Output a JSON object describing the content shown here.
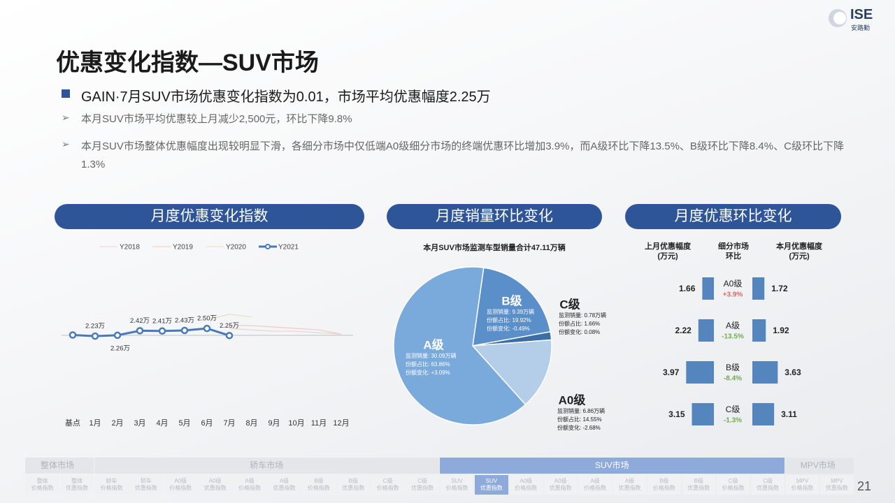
{
  "header": {
    "title": "优惠变化指数—SUV市场",
    "logo": "ISE",
    "logo_sub": "安路勤"
  },
  "summary": {
    "headline": "GAIN·7月SUV市场优惠变化指数为0.01，市场平均优惠幅度2.25万",
    "points": [
      "本月SUV市场平均优惠较上月减少2,500元，环比下降9.8%",
      "本月SUV市场整体优惠幅度出现较明显下滑，各细分市场中仅低端A0级细分市场的终端优惠环比增加3.9%，而A级环比下降13.5%、B级环比下降8.4%、C级环比下降1.3%"
    ]
  },
  "chart_data": [
    {
      "type": "line",
      "title": "月度优惠变化指数",
      "categories": [
        "基点",
        "1月",
        "2月",
        "3月",
        "4月",
        "5月",
        "6月",
        "7月",
        "8月",
        "9月",
        "10月",
        "11月",
        "12月"
      ],
      "ylim": [
        0,
        4
      ],
      "series": [
        {
          "name": "Y2018",
          "color": "#e3d6d6",
          "values": [
            null,
            null,
            null,
            null,
            null,
            null,
            null,
            2.5,
            2.45,
            2.4,
            2.4,
            2.35,
            2.3
          ]
        },
        {
          "name": "Y2019",
          "color": "#f0c9c0",
          "values": [
            null,
            null,
            null,
            null,
            null,
            null,
            null,
            2.6,
            2.6,
            2.55,
            2.5,
            2.45,
            2.3
          ]
        },
        {
          "name": "Y2020",
          "color": "#eedcc0",
          "values": [
            null,
            null,
            null,
            null,
            null,
            null,
            2.8,
            3.0,
            2.9,
            null,
            null,
            null,
            null
          ]
        },
        {
          "name": "Y2021",
          "color": "#4a7ab5",
          "values": [
            2.27,
            2.23,
            2.26,
            2.42,
            2.41,
            2.43,
            2.5,
            2.25,
            null,
            null,
            null,
            null,
            null
          ],
          "value_labels": [
            null,
            "2.23万",
            "2.26万",
            "2.42万",
            "2.41万",
            "2.43万",
            "2.50万",
            "2.25万",
            null,
            null,
            null,
            null,
            null
          ]
        }
      ]
    },
    {
      "type": "pie",
      "title": "月度销量环比变化",
      "subtitle": "本月SUV市场监测车型销量合计47.11万辆",
      "categories": [
        "B级",
        "C级",
        "A0级",
        "A级"
      ],
      "values": [
        19.92,
        1.66,
        14.55,
        63.86
      ],
      "colors": [
        "#5b8fc9",
        "#3b6ea5",
        "#b4cde9",
        "#7aaadc"
      ],
      "details": [
        [
          "监测销量: 9.39万辆",
          "份额占比: 19.92%",
          "份额变化: -0.49%"
        ],
        [
          "监测销量: 0.78万辆",
          "份额占比: 1.66%",
          "份额变化: 0.08%"
        ],
        [
          "监测销量: 6.86万辆",
          "份额占比: 14.55%",
          "份额变化: -2.68%"
        ],
        [
          "监测销量: 30.09万辆",
          "份额占比: 63.86%",
          "份额变化: +3.09%"
        ]
      ]
    },
    {
      "type": "bar",
      "title": "月度优惠环比变化",
      "categories": [
        "A0级",
        "A级",
        "B级",
        "C级"
      ],
      "color": "#5585bd",
      "series": [
        {
          "name": "上月优惠幅度\n(万元)",
          "values": [
            1.66,
            2.22,
            3.97,
            3.15
          ]
        },
        {
          "name": "本月优惠幅度\n(万元)",
          "values": [
            1.72,
            1.92,
            3.63,
            3.11
          ]
        }
      ],
      "change": {
        "name": "细分市场\n环比",
        "values": [
          3.9,
          -13.5,
          -8.4,
          -1.3
        ],
        "value_labels": [
          "+3.9%",
          "-13.5%",
          "-8.4%",
          "-1.3%"
        ],
        "up_color": "#e06666",
        "down_color": "#70ad47"
      }
    }
  ],
  "nav": {
    "groups": [
      {
        "label": "整体市场",
        "items": [
          [
            "整体",
            "价格指数"
          ],
          [
            "整体",
            "优惠指数"
          ]
        ]
      },
      {
        "label": "轿车市场",
        "items": [
          [
            "轿车",
            "价格指数"
          ],
          [
            "轿车",
            "优惠指数"
          ],
          [
            "A0级",
            "价格指数"
          ],
          [
            "A0级",
            "优惠指数"
          ],
          [
            "A级",
            "价格指数"
          ],
          [
            "A级",
            "优惠指数"
          ],
          [
            "B级",
            "价格指数"
          ],
          [
            "B级",
            "优惠指数"
          ],
          [
            "C级",
            "价格指数"
          ],
          [
            "C级",
            "优惠指数"
          ]
        ]
      },
      {
        "label": "SUV市场",
        "active": true,
        "selected": 1,
        "items": [
          [
            "SUV",
            "价格指数"
          ],
          [
            "SUV",
            "优惠指数"
          ],
          [
            "A0级",
            "价格指数"
          ],
          [
            "A0级",
            "优惠指数"
          ],
          [
            "A级",
            "价格指数"
          ],
          [
            "A级",
            "优惠指数"
          ],
          [
            "B级",
            "价格指数"
          ],
          [
            "B级",
            "优惠指数"
          ],
          [
            "C级",
            "价格指数"
          ],
          [
            "C级",
            "优惠指数"
          ]
        ]
      },
      {
        "label": "MPV市场",
        "items": [
          [
            "MPV",
            "价格指数"
          ],
          [
            "MPV",
            "优惠指数"
          ]
        ]
      }
    ]
  },
  "page_number": "21"
}
